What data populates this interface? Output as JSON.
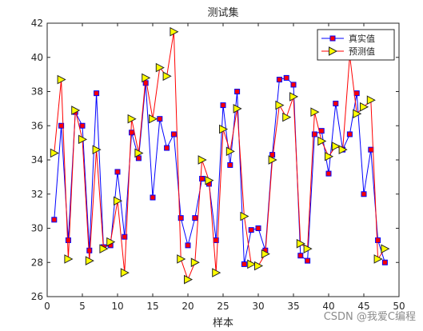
{
  "chart_data": {
    "type": "line",
    "title": "测试集",
    "xlabel": "样本",
    "ylabel": "",
    "xlim": [
      0,
      50
    ],
    "ylim": [
      26,
      42
    ],
    "xticks": [
      0,
      5,
      10,
      15,
      20,
      25,
      30,
      35,
      40,
      45,
      50
    ],
    "yticks": [
      26,
      28,
      30,
      32,
      34,
      36,
      38,
      40,
      42
    ],
    "grid": false,
    "legend_position": "top-right",
    "x": [
      1,
      2,
      3,
      4,
      5,
      6,
      7,
      8,
      9,
      10,
      11,
      12,
      13,
      14,
      15,
      16,
      17,
      18,
      19,
      20,
      21,
      22,
      23,
      24,
      25,
      26,
      27,
      28,
      29,
      30,
      31,
      32,
      33,
      34,
      35,
      36,
      37,
      38,
      39,
      40,
      41,
      42,
      43,
      44,
      45,
      46,
      47,
      48
    ],
    "series": [
      {
        "name": "真实值",
        "color": "#0000ff",
        "marker": "square",
        "marker_fill": "#ff0000",
        "values": [
          30.5,
          36.0,
          29.3,
          36.8,
          36.0,
          28.7,
          37.9,
          28.9,
          29.0,
          33.3,
          29.5,
          35.6,
          34.1,
          38.5,
          31.8,
          36.4,
          34.7,
          35.5,
          30.6,
          29.0,
          30.6,
          32.9,
          32.6,
          29.3,
          37.2,
          33.7,
          38.0,
          27.9,
          29.9,
          30.0,
          28.7,
          34.3,
          38.7,
          38.8,
          38.4,
          28.4,
          28.1,
          35.5,
          35.7,
          33.2,
          37.3,
          34.6,
          35.5,
          37.9,
          32.0,
          34.6,
          29.3,
          28.0
        ]
      },
      {
        "name": "预测值",
        "color": "#ff0000",
        "marker": "triangle-right",
        "marker_fill": "#ffff00",
        "values": [
          34.4,
          38.7,
          28.2,
          36.9,
          35.2,
          28.1,
          34.6,
          28.8,
          29.2,
          31.6,
          27.4,
          36.4,
          34.4,
          38.8,
          36.4,
          39.4,
          38.9,
          41.5,
          28.2,
          27.0,
          28.0,
          34.0,
          32.8,
          27.4,
          35.8,
          34.5,
          37.0,
          30.7,
          27.9,
          27.8,
          28.5,
          34.0,
          37.2,
          36.5,
          37.7,
          29.1,
          28.8,
          36.8,
          35.1,
          34.2,
          34.8,
          34.6,
          40.1,
          36.7,
          37.1,
          37.5,
          28.2,
          28.8
        ]
      }
    ]
  },
  "watermark": "CSDN @我爱C编程"
}
